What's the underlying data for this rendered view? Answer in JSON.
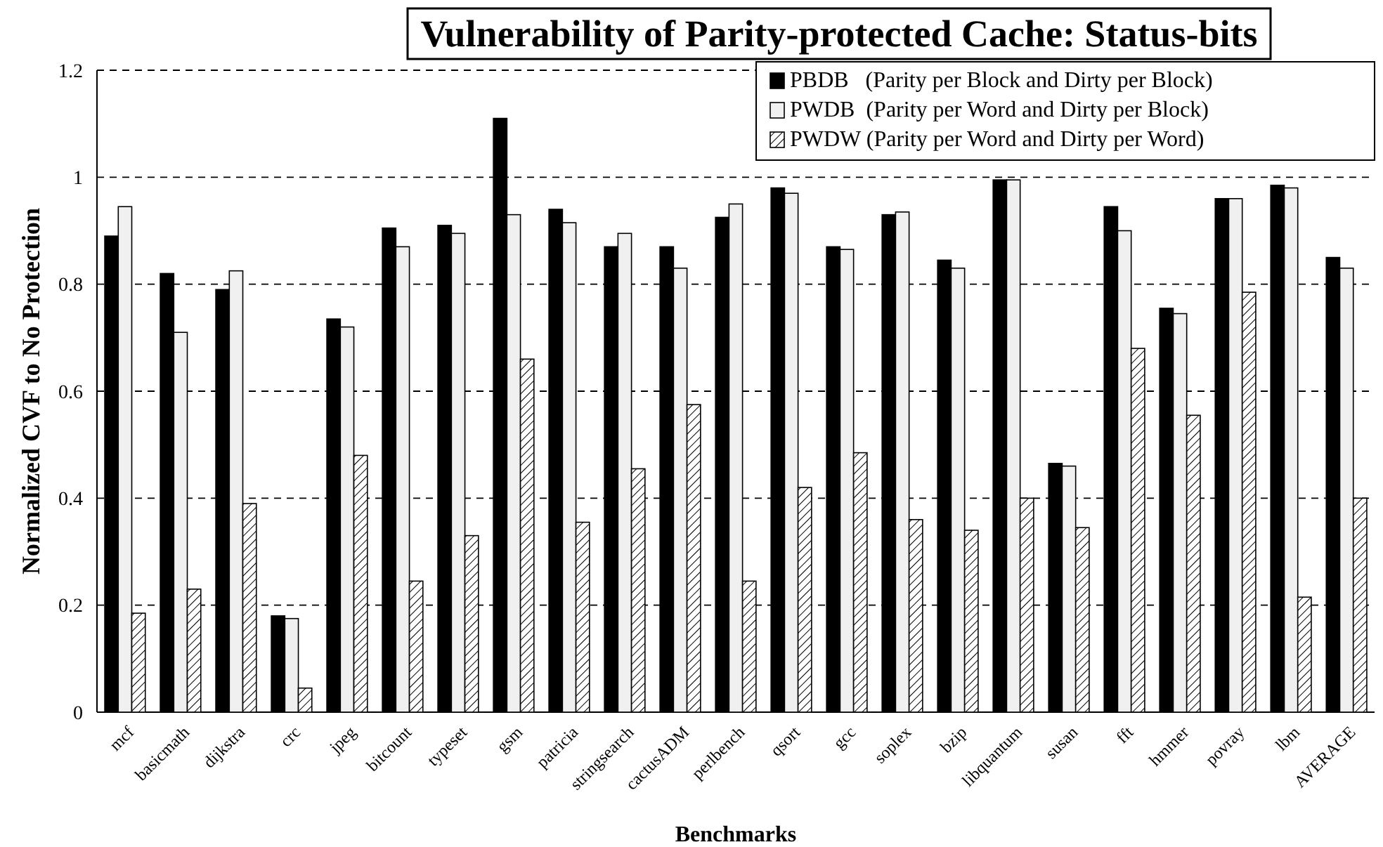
{
  "chart_data": {
    "type": "bar",
    "title": "Vulnerability of Parity-protected Cache: Status-bits",
    "xlabel": "Benchmarks",
    "ylabel": "Normalized CVF to No Protection",
    "categories": [
      "mcf",
      "basicmath",
      "dijkstra",
      "crc",
      "jpeg",
      "bitcount",
      "typeset",
      "gsm",
      "patricia",
      "stringsearch",
      "cactusADM",
      "perlbench",
      "qsort",
      "gcc",
      "soplex",
      "bzip",
      "libquantum",
      "susan",
      "fft",
      "hmmer",
      "povray",
      "lbm",
      "AVERAGE"
    ],
    "series": [
      {
        "name": "PBDB   (Parity per Block and Dirty per Block)",
        "color": "#000000",
        "values": [
          0.89,
          0.82,
          0.79,
          0.18,
          0.735,
          0.905,
          0.91,
          1.11,
          0.94,
          0.87,
          0.87,
          0.925,
          0.98,
          0.87,
          0.93,
          0.845,
          0.995,
          0.465,
          0.945,
          0.755,
          0.96,
          0.985,
          0.85
        ]
      },
      {
        "name": "PWDB  (Parity per Word and Dirty per Block)",
        "color": "#f0f0f0",
        "values": [
          0.945,
          0.71,
          0.825,
          0.175,
          0.72,
          0.87,
          0.895,
          0.93,
          0.915,
          0.895,
          0.83,
          0.95,
          0.97,
          0.865,
          0.935,
          0.83,
          0.995,
          0.46,
          0.9,
          0.745,
          0.96,
          0.98,
          0.83
        ]
      },
      {
        "name": "PWDW (Parity per Word and Dirty per Word)",
        "color": "#000000",
        "values": [
          0.185,
          0.23,
          0.39,
          0.045,
          0.48,
          0.245,
          0.33,
          0.66,
          0.355,
          0.455,
          0.575,
          0.245,
          0.42,
          0.485,
          0.36,
          0.34,
          0.4,
          0.345,
          0.68,
          0.555,
          0.785,
          0.215,
          0.4
        ]
      }
    ],
    "ylim": [
      0,
      1.2
    ],
    "yticks": [
      0,
      0.2,
      0.4,
      0.6,
      0.8,
      1,
      1.2
    ],
    "grid": "y",
    "legend": "top right"
  }
}
